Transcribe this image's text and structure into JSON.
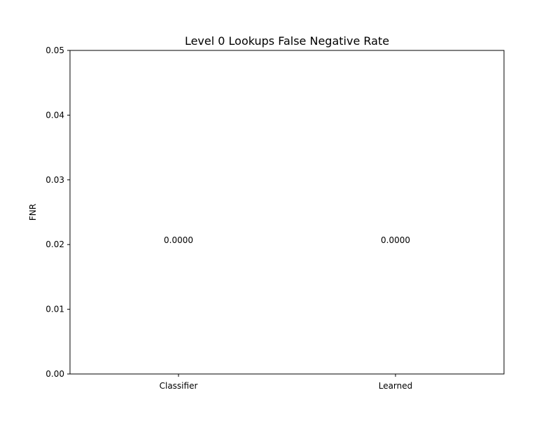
{
  "chart_data": {
    "type": "bar",
    "title": "Level 0 Lookups False Negative Rate",
    "xlabel": "",
    "ylabel": "FNR",
    "categories": [
      "Classifier",
      "Learned"
    ],
    "values": [
      0.0,
      0.0
    ],
    "data_labels": [
      "0.0000",
      "0.0000"
    ],
    "ylim": [
      0,
      0.05
    ],
    "yticks": [
      0.0,
      0.01,
      0.02,
      0.03,
      0.04,
      0.05
    ],
    "ytick_labels": [
      "0.00",
      "0.01",
      "0.02",
      "0.03",
      "0.04",
      "0.05"
    ],
    "grid": false,
    "legend": "none"
  }
}
